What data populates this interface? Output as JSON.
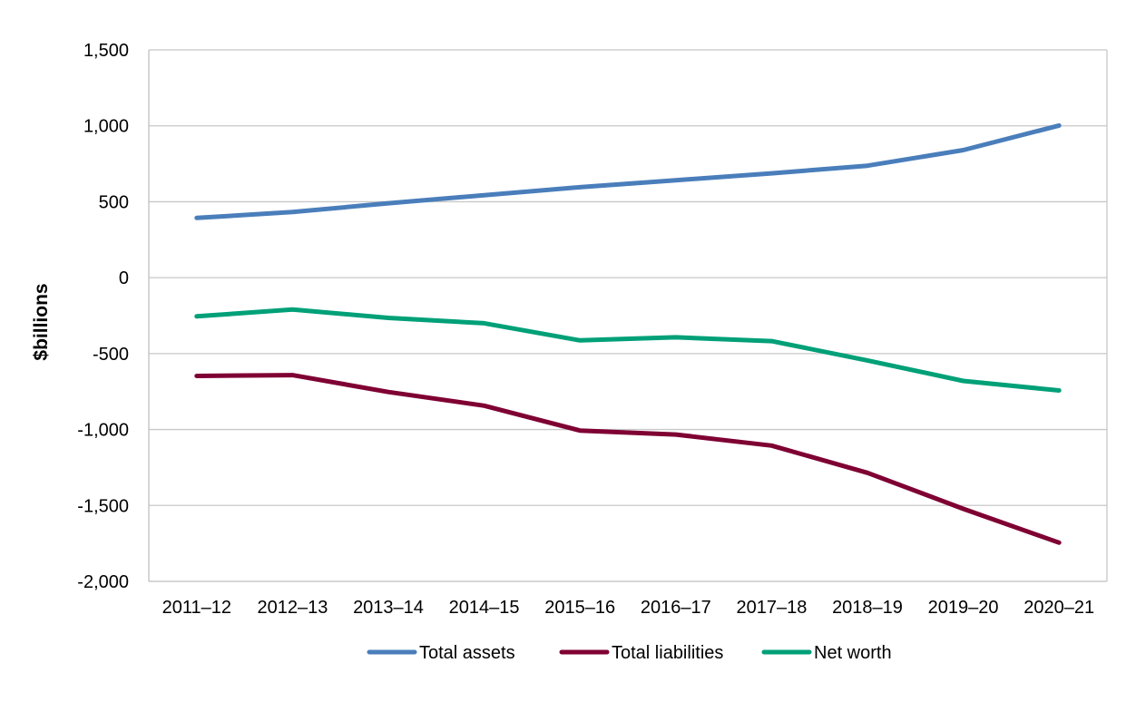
{
  "chart_data": {
    "type": "line",
    "ylabel": "$billions",
    "xlabel": "",
    "title": "",
    "categories": [
      "2011–12",
      "2012–13",
      "2013–14",
      "2014–15",
      "2015–16",
      "2016–17",
      "2017–18",
      "2018–19",
      "2019–20",
      "2020–21"
    ],
    "ylim": [
      -2000,
      1500
    ],
    "yticks": [
      1500,
      1000,
      500,
      0,
      -500,
      -1000,
      -1500,
      -2000
    ],
    "ytick_labels": [
      "1,500",
      "1,000",
      "500",
      "0",
      "-500",
      "-1,000",
      "-1,500",
      "-2,000"
    ],
    "grid": true,
    "legend_position": "bottom",
    "series": [
      {
        "name": "Total assets",
        "color": "#4a7ebb",
        "values": [
          393,
          432,
          490,
          543,
          596,
          642,
          687,
          737,
          840,
          1002
        ]
      },
      {
        "name": "Total liabilities",
        "color": "#7f0033",
        "values": [
          -647,
          -642,
          -753,
          -843,
          -1007,
          -1033,
          -1106,
          -1285,
          -1522,
          -1745
        ]
      },
      {
        "name": "Net worth",
        "color": "#00a078",
        "values": [
          -255,
          -210,
          -265,
          -300,
          -413,
          -393,
          -418,
          -545,
          -680,
          -743
        ]
      }
    ]
  }
}
